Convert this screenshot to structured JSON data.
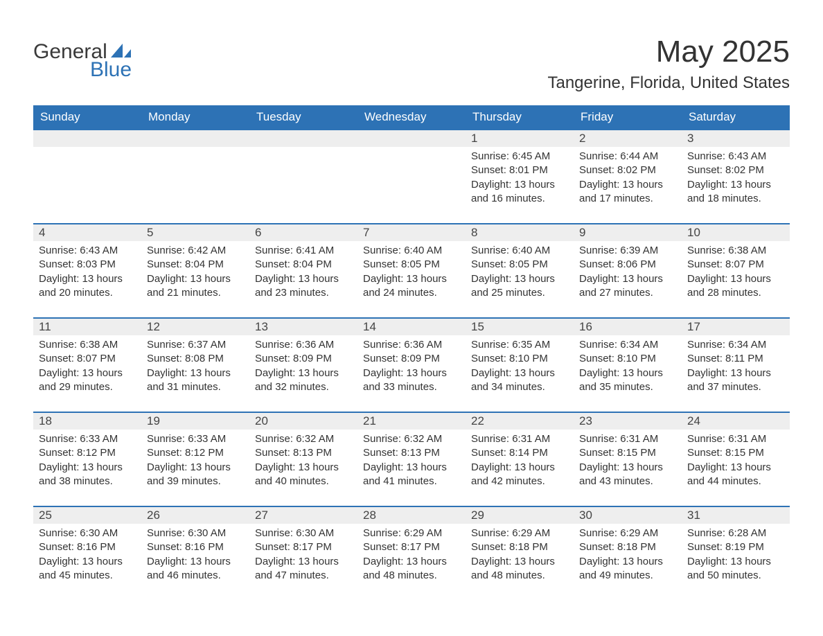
{
  "logo": {
    "line1": "General",
    "line2": "Blue"
  },
  "title": "May 2025",
  "location": "Tangerine, Florida, United States",
  "colors": {
    "brand": "#2d72b5",
    "daybar": "#eeeeee",
    "text": "#333333",
    "bg": "#ffffff"
  },
  "dow": [
    "Sunday",
    "Monday",
    "Tuesday",
    "Wednesday",
    "Thursday",
    "Friday",
    "Saturday"
  ],
  "weeks": [
    [
      null,
      null,
      null,
      null,
      {
        "n": "1",
        "sr": "Sunrise: 6:45 AM",
        "ss": "Sunset: 8:01 PM",
        "d1": "Daylight: 13 hours",
        "d2": "and 16 minutes."
      },
      {
        "n": "2",
        "sr": "Sunrise: 6:44 AM",
        "ss": "Sunset: 8:02 PM",
        "d1": "Daylight: 13 hours",
        "d2": "and 17 minutes."
      },
      {
        "n": "3",
        "sr": "Sunrise: 6:43 AM",
        "ss": "Sunset: 8:02 PM",
        "d1": "Daylight: 13 hours",
        "d2": "and 18 minutes."
      }
    ],
    [
      {
        "n": "4",
        "sr": "Sunrise: 6:43 AM",
        "ss": "Sunset: 8:03 PM",
        "d1": "Daylight: 13 hours",
        "d2": "and 20 minutes."
      },
      {
        "n": "5",
        "sr": "Sunrise: 6:42 AM",
        "ss": "Sunset: 8:04 PM",
        "d1": "Daylight: 13 hours",
        "d2": "and 21 minutes."
      },
      {
        "n": "6",
        "sr": "Sunrise: 6:41 AM",
        "ss": "Sunset: 8:04 PM",
        "d1": "Daylight: 13 hours",
        "d2": "and 23 minutes."
      },
      {
        "n": "7",
        "sr": "Sunrise: 6:40 AM",
        "ss": "Sunset: 8:05 PM",
        "d1": "Daylight: 13 hours",
        "d2": "and 24 minutes."
      },
      {
        "n": "8",
        "sr": "Sunrise: 6:40 AM",
        "ss": "Sunset: 8:05 PM",
        "d1": "Daylight: 13 hours",
        "d2": "and 25 minutes."
      },
      {
        "n": "9",
        "sr": "Sunrise: 6:39 AM",
        "ss": "Sunset: 8:06 PM",
        "d1": "Daylight: 13 hours",
        "d2": "and 27 minutes."
      },
      {
        "n": "10",
        "sr": "Sunrise: 6:38 AM",
        "ss": "Sunset: 8:07 PM",
        "d1": "Daylight: 13 hours",
        "d2": "and 28 minutes."
      }
    ],
    [
      {
        "n": "11",
        "sr": "Sunrise: 6:38 AM",
        "ss": "Sunset: 8:07 PM",
        "d1": "Daylight: 13 hours",
        "d2": "and 29 minutes."
      },
      {
        "n": "12",
        "sr": "Sunrise: 6:37 AM",
        "ss": "Sunset: 8:08 PM",
        "d1": "Daylight: 13 hours",
        "d2": "and 31 minutes."
      },
      {
        "n": "13",
        "sr": "Sunrise: 6:36 AM",
        "ss": "Sunset: 8:09 PM",
        "d1": "Daylight: 13 hours",
        "d2": "and 32 minutes."
      },
      {
        "n": "14",
        "sr": "Sunrise: 6:36 AM",
        "ss": "Sunset: 8:09 PM",
        "d1": "Daylight: 13 hours",
        "d2": "and 33 minutes."
      },
      {
        "n": "15",
        "sr": "Sunrise: 6:35 AM",
        "ss": "Sunset: 8:10 PM",
        "d1": "Daylight: 13 hours",
        "d2": "and 34 minutes."
      },
      {
        "n": "16",
        "sr": "Sunrise: 6:34 AM",
        "ss": "Sunset: 8:10 PM",
        "d1": "Daylight: 13 hours",
        "d2": "and 35 minutes."
      },
      {
        "n": "17",
        "sr": "Sunrise: 6:34 AM",
        "ss": "Sunset: 8:11 PM",
        "d1": "Daylight: 13 hours",
        "d2": "and 37 minutes."
      }
    ],
    [
      {
        "n": "18",
        "sr": "Sunrise: 6:33 AM",
        "ss": "Sunset: 8:12 PM",
        "d1": "Daylight: 13 hours",
        "d2": "and 38 minutes."
      },
      {
        "n": "19",
        "sr": "Sunrise: 6:33 AM",
        "ss": "Sunset: 8:12 PM",
        "d1": "Daylight: 13 hours",
        "d2": "and 39 minutes."
      },
      {
        "n": "20",
        "sr": "Sunrise: 6:32 AM",
        "ss": "Sunset: 8:13 PM",
        "d1": "Daylight: 13 hours",
        "d2": "and 40 minutes."
      },
      {
        "n": "21",
        "sr": "Sunrise: 6:32 AM",
        "ss": "Sunset: 8:13 PM",
        "d1": "Daylight: 13 hours",
        "d2": "and 41 minutes."
      },
      {
        "n": "22",
        "sr": "Sunrise: 6:31 AM",
        "ss": "Sunset: 8:14 PM",
        "d1": "Daylight: 13 hours",
        "d2": "and 42 minutes."
      },
      {
        "n": "23",
        "sr": "Sunrise: 6:31 AM",
        "ss": "Sunset: 8:15 PM",
        "d1": "Daylight: 13 hours",
        "d2": "and 43 minutes."
      },
      {
        "n": "24",
        "sr": "Sunrise: 6:31 AM",
        "ss": "Sunset: 8:15 PM",
        "d1": "Daylight: 13 hours",
        "d2": "and 44 minutes."
      }
    ],
    [
      {
        "n": "25",
        "sr": "Sunrise: 6:30 AM",
        "ss": "Sunset: 8:16 PM",
        "d1": "Daylight: 13 hours",
        "d2": "and 45 minutes."
      },
      {
        "n": "26",
        "sr": "Sunrise: 6:30 AM",
        "ss": "Sunset: 8:16 PM",
        "d1": "Daylight: 13 hours",
        "d2": "and 46 minutes."
      },
      {
        "n": "27",
        "sr": "Sunrise: 6:30 AM",
        "ss": "Sunset: 8:17 PM",
        "d1": "Daylight: 13 hours",
        "d2": "and 47 minutes."
      },
      {
        "n": "28",
        "sr": "Sunrise: 6:29 AM",
        "ss": "Sunset: 8:17 PM",
        "d1": "Daylight: 13 hours",
        "d2": "and 48 minutes."
      },
      {
        "n": "29",
        "sr": "Sunrise: 6:29 AM",
        "ss": "Sunset: 8:18 PM",
        "d1": "Daylight: 13 hours",
        "d2": "and 48 minutes."
      },
      {
        "n": "30",
        "sr": "Sunrise: 6:29 AM",
        "ss": "Sunset: 8:18 PM",
        "d1": "Daylight: 13 hours",
        "d2": "and 49 minutes."
      },
      {
        "n": "31",
        "sr": "Sunrise: 6:28 AM",
        "ss": "Sunset: 8:19 PM",
        "d1": "Daylight: 13 hours",
        "d2": "and 50 minutes."
      }
    ]
  ]
}
